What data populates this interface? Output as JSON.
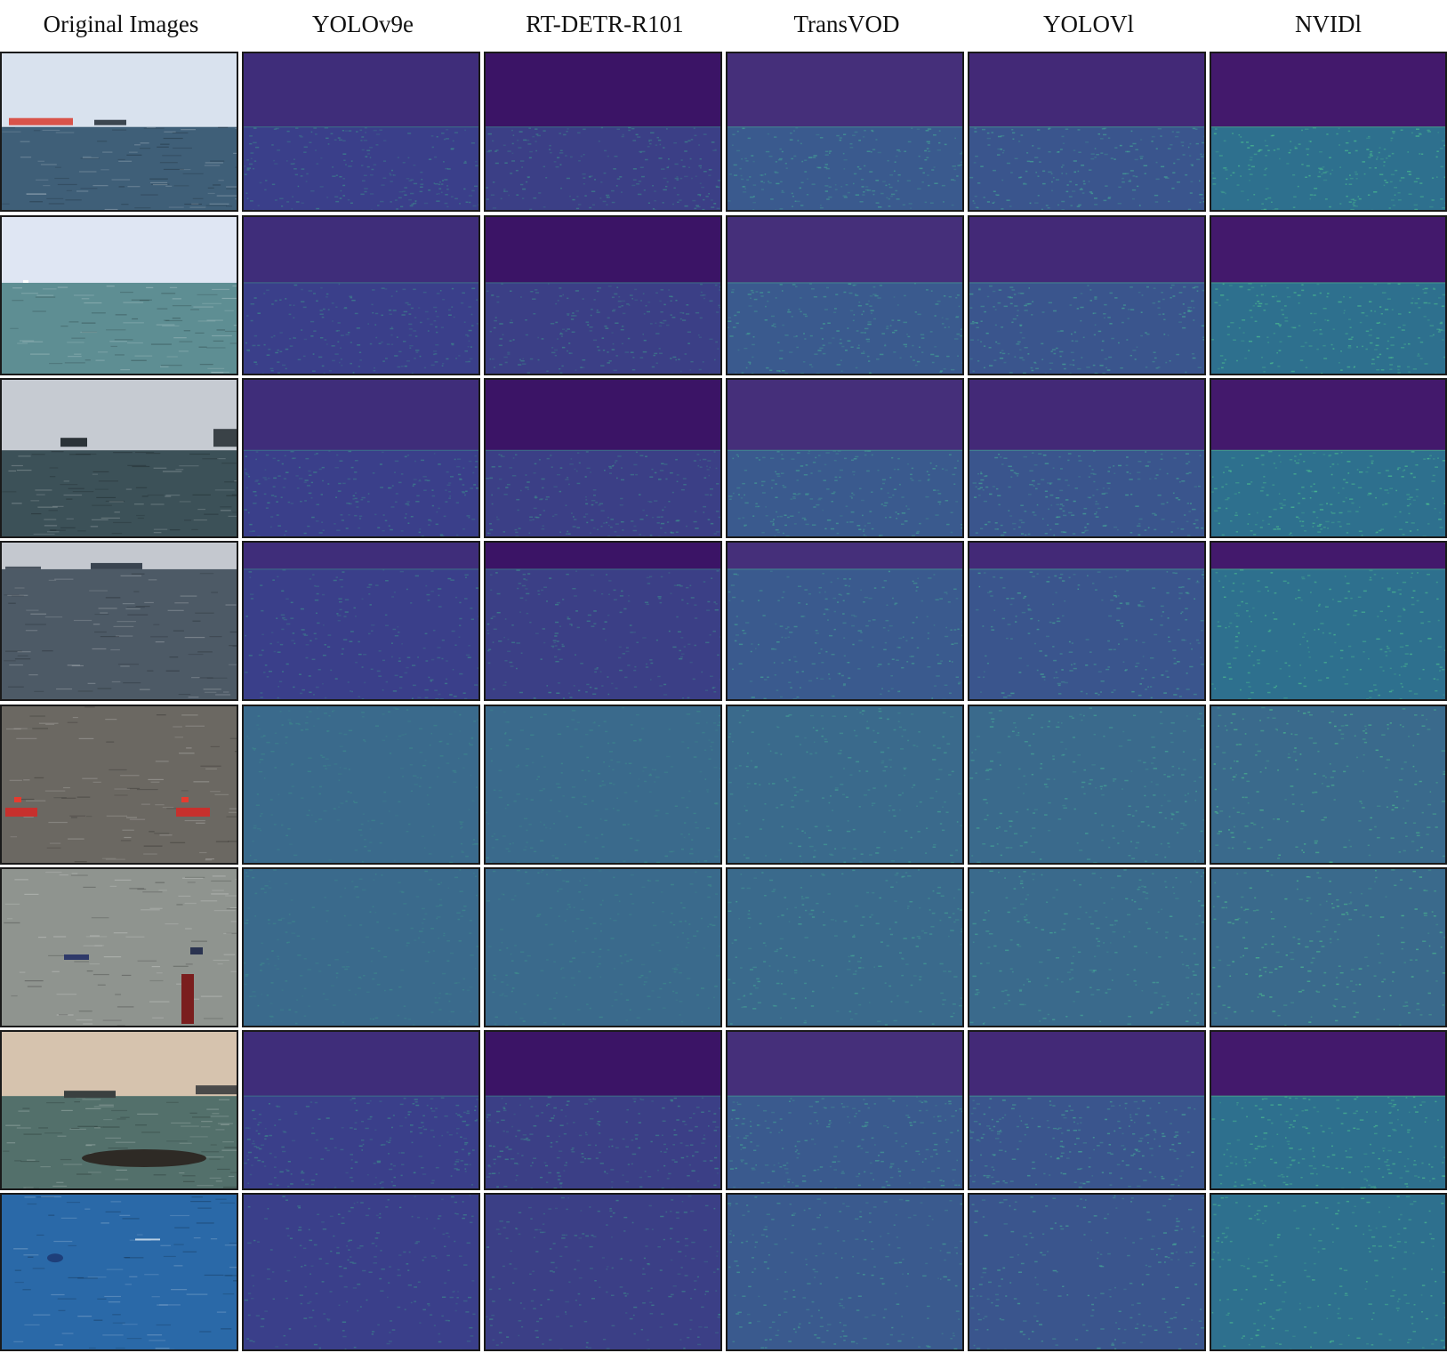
{
  "figure": {
    "columns": [
      {
        "key": "original",
        "label": "Original Images"
      },
      {
        "key": "yolov9e",
        "label": "YOLOv9e"
      },
      {
        "key": "rtdetr",
        "label": "RT-DETR-R101"
      },
      {
        "key": "transvod",
        "label": "TransVOD"
      },
      {
        "key": "yolovl",
        "label": "YOLOVl"
      },
      {
        "key": "nvidl",
        "label": "NVIDl"
      }
    ],
    "rows": [
      {
        "scene": "open-sea-distant-red-cargo-ship",
        "sky": "#d9e2ee",
        "water": "#3f5f78"
      },
      {
        "scene": "open-sea-tiny-boat-horizon",
        "sky": "#dfe6f3",
        "water": "#5e8e93"
      },
      {
        "scene": "grey-sea-patrol-boats",
        "sky": "#c6cbd2",
        "water": "#3c5158"
      },
      {
        "scene": "glittering-sea-distant-ships",
        "sky": "#c4c8cf",
        "water": "#4d5a66"
      },
      {
        "scene": "brown-water-two-red-boats",
        "sky": "#7d7a74",
        "water": "#6b6862"
      },
      {
        "scene": "grey-water-small-boats-buoy",
        "sky": "#9ba19c",
        "water": "#8f948f"
      },
      {
        "scene": "hazy-harbor-ships-rocks",
        "sky": "#d6c3ae",
        "water": "#53706b"
      },
      {
        "scene": "blue-sea-small-kayak",
        "sky": "#2a69a8",
        "water": "#2a69a8"
      }
    ]
  }
}
